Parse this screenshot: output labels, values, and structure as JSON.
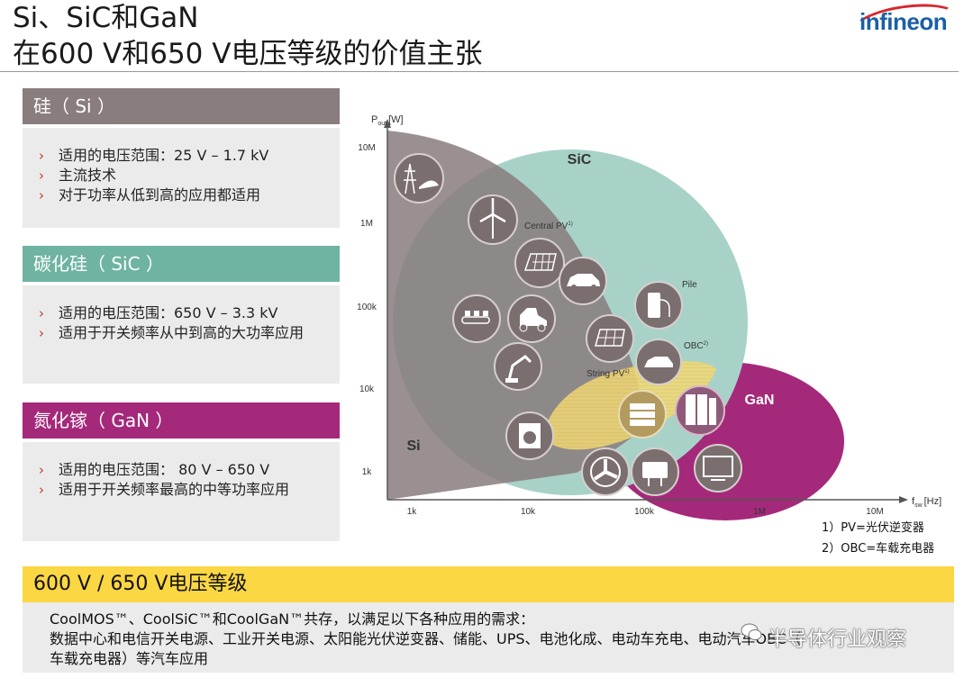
{
  "header": {
    "title_line1": "Si、SiC和GaN",
    "title_line2": "在600 V和650 V电压等级的价值主张",
    "logo_text": "infineon",
    "logo_colors": {
      "text": "#1a5ea8",
      "arc": "#d7262e"
    }
  },
  "panels": [
    {
      "heading": "硅（ Si ）",
      "color": "#8a7d7e",
      "bullets": [
        "适用的电压范围：25 V – 1.7 kV",
        "主流技术",
        "对于功率从低到高的应用都适用"
      ]
    },
    {
      "heading": "碳化硅（ SiC ）",
      "color": "#6fb3a3",
      "bullets": [
        "适用的电压范围：650 V – 3.3 kV",
        "适用于开关频率从中到高的大功率应用"
      ]
    },
    {
      "heading": "氮化镓（ GaN ）",
      "color": "#a5297a",
      "bullets": [
        "适用的电压范围： 80 V – 650 V",
        "适用于开关频率最高的中等功率应用"
      ]
    }
  ],
  "bullet_marker": "›",
  "chart": {
    "y_axis_label_main": "P",
    "y_axis_label_sub": "out",
    "y_axis_label_unit": "[W]",
    "x_axis_label_main": "f",
    "x_axis_label_sub": "sw",
    "x_axis_label_unit": "[Hz]",
    "y_ticks": [
      "10M",
      "1M",
      "100k",
      "10k",
      "1k"
    ],
    "x_ticks": [
      "1k",
      "10k",
      "100k",
      "1M",
      "10M"
    ],
    "regions": [
      {
        "name": "SiC",
        "color": "#9fcfc5"
      },
      {
        "name": "GaN",
        "color": "#a5297a"
      },
      {
        "name": "Si",
        "color": "#8a7d7e"
      }
    ],
    "application_labels": {
      "central_pv": "Central PV",
      "string_pv": "String PV",
      "pile": "Pile",
      "obc": "OBC",
      "sup1": "1)",
      "sup2": "2)"
    },
    "icons": [
      "power-tower-train-icon",
      "wind-turbine-icon",
      "solar-panel-icon",
      "car-icon",
      "charging-pile-icon",
      "conveyor-icon",
      "loader-icon",
      "robot-arm-icon",
      "solar-panel-small-icon",
      "onboard-charger-icon",
      "server-icon",
      "rack-server-icon",
      "washing-machine-icon",
      "fan-icon",
      "adapter-icon",
      "tv-icon"
    ]
  },
  "footnotes": [
    "1）PV=光伏逆变器",
    "2）OBC=车载充电器"
  ],
  "bottom": {
    "heading": "600 V / 650 V电压等级",
    "line1": "CoolMOS™、CoolSiC™和CoolGaN™共存，以满足以下各种应用的需求：",
    "line2": "数据中心和电信开关电源、工业开关电源、太阳能光伏逆变器、储能、UPS、电池化成、电动车充电、电动汽车OBC（",
    "line3": "车载充电器）等汽车应用",
    "accent": "#fbd744"
  },
  "watermark": "半导体行业观察"
}
